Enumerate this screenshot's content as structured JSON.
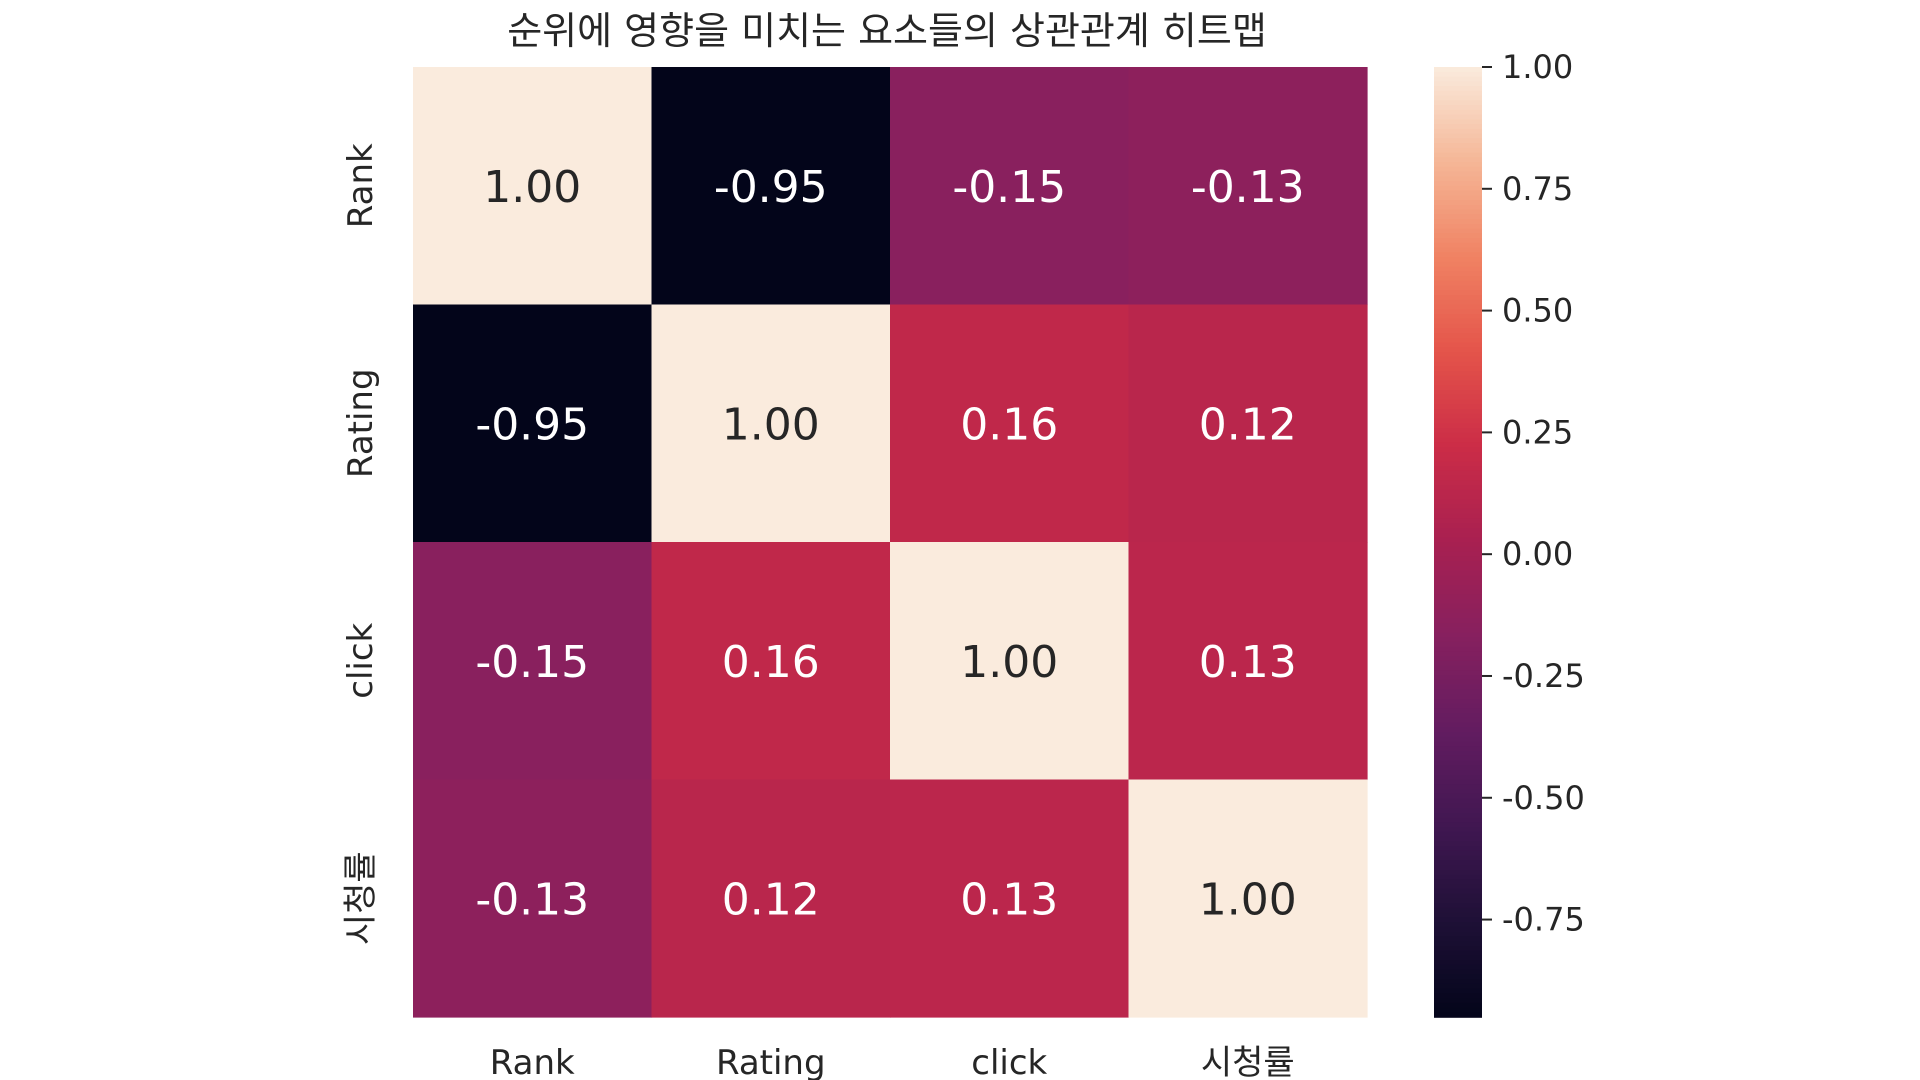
{
  "chart_data": {
    "type": "heatmap",
    "title": "순위에 영향을 미치는 요소들의 상관관계 히트맵",
    "x_labels": [
      "Rank",
      "Rating",
      "click",
      "시청률"
    ],
    "y_labels": [
      "Rank",
      "Rating",
      "click",
      "시청률"
    ],
    "values": [
      [
        1.0,
        -0.95,
        -0.15,
        -0.13
      ],
      [
        -0.95,
        1.0,
        0.16,
        0.12
      ],
      [
        -0.15,
        0.16,
        1.0,
        0.13
      ],
      [
        -0.13,
        0.12,
        0.13,
        1.0
      ]
    ],
    "annotations": [
      [
        "1.00",
        "-0.95",
        "-0.15",
        "-0.13"
      ],
      [
        "-0.95",
        "1.00",
        "0.16",
        "0.12"
      ],
      [
        "-0.15",
        "0.16",
        "1.00",
        "0.13"
      ],
      [
        "-0.13",
        "0.12",
        "0.13",
        "1.00"
      ]
    ],
    "colorbar": {
      "min": -0.95,
      "max": 1.0,
      "ticks": [
        1.0,
        0.75,
        0.5,
        0.25,
        0.0,
        -0.25,
        -0.5,
        -0.75
      ],
      "tick_labels": [
        "1.00",
        "0.75",
        "0.50",
        "0.25",
        "0.00",
        "-0.25",
        "-0.50",
        "-0.75"
      ],
      "colormap": "rocket",
      "placement": "right"
    }
  }
}
